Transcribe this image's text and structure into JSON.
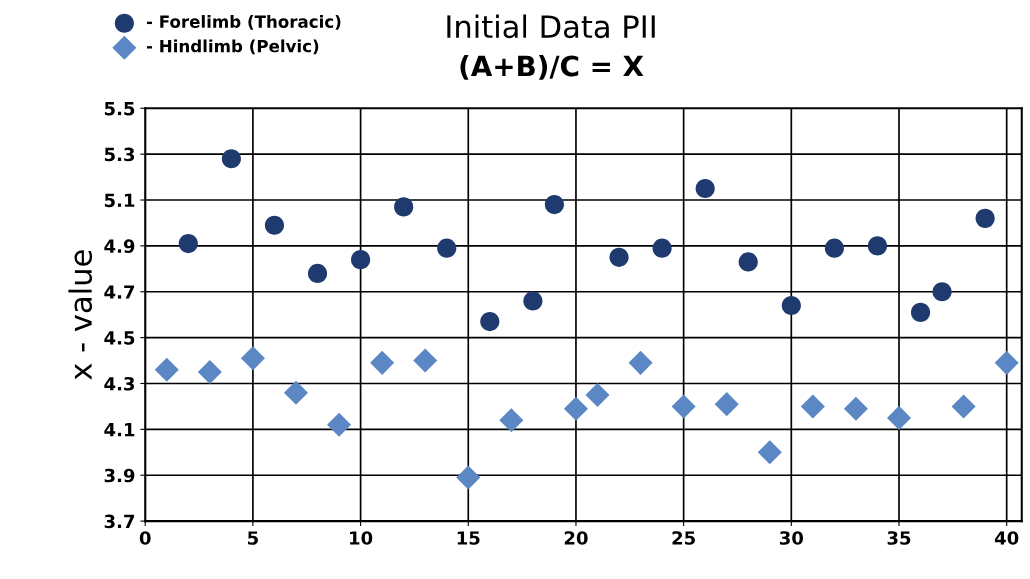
{
  "chart_data": {
    "type": "scatter",
    "title": "Initial Data PII",
    "subtitle": "(A+B)/C = X",
    "ylabel": "x - value",
    "xlim": [
      0,
      40.7
    ],
    "xticks": [
      0,
      5,
      10,
      15,
      20,
      25,
      30,
      35,
      40
    ],
    "ylim": [
      3.7,
      5.5
    ],
    "yticks": [
      3.7,
      3.9,
      4.1,
      4.3,
      4.5,
      4.7,
      4.9,
      5.1,
      5.3,
      5.5
    ],
    "grid": true,
    "legend": "top left",
    "series": [
      {
        "name": "- Forelimb (Thoracic)",
        "color": "#1f3a6e",
        "marker": "circle",
        "x": [
          2,
          4,
          6,
          8,
          10,
          12,
          14,
          16,
          18,
          19,
          22,
          24,
          26,
          28,
          30,
          32,
          34,
          36,
          37,
          39
        ],
        "values": [
          4.91,
          5.28,
          4.99,
          4.78,
          4.84,
          5.07,
          4.89,
          4.57,
          4.66,
          5.08,
          4.85,
          4.89,
          5.15,
          4.83,
          4.64,
          4.89,
          4.9,
          4.61,
          4.7,
          5.02
        ]
      },
      {
        "name": "- Hindlimb (Pelvic)",
        "color": "#5b87c5",
        "marker": "diamond",
        "x": [
          1,
          3,
          5,
          7,
          9,
          11,
          13,
          15,
          17,
          20,
          21,
          23,
          25,
          27,
          29,
          31,
          33,
          35,
          38,
          40
        ],
        "values": [
          4.36,
          4.35,
          4.41,
          4.26,
          4.12,
          4.39,
          4.4,
          3.89,
          4.14,
          4.19,
          4.25,
          4.39,
          4.2,
          4.21,
          4.0,
          4.2,
          4.19,
          4.15,
          4.2,
          4.39
        ]
      }
    ]
  }
}
